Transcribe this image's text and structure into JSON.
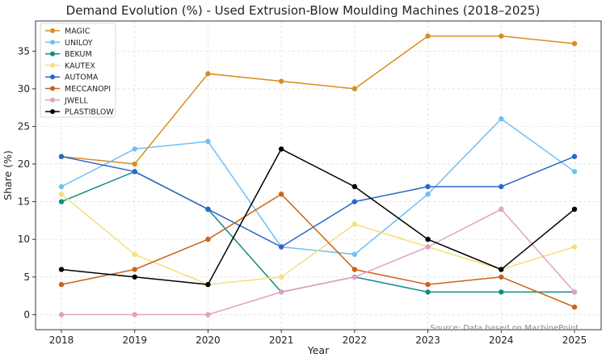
{
  "chart_data": {
    "type": "line",
    "title": "Demand Evolution (%) - Used Extrusion-Blow Moulding Machines (2018–2025)",
    "xlabel": "Year",
    "ylabel": "Share (%)",
    "x": [
      "2018",
      "2019",
      "2020",
      "2021",
      "2022",
      "2023",
      "2024",
      "2025"
    ],
    "ylim": [
      -2,
      39
    ],
    "yticks": [
      "0",
      "5",
      "10",
      "15",
      "20",
      "25",
      "30",
      "35"
    ],
    "grid": true,
    "legend_position": "top-left",
    "annotation": "Source: Data based on MachinePoint",
    "series": [
      {
        "name": "MAGIC",
        "color": "#d98c1f",
        "values": [
          21,
          20,
          32,
          31,
          30,
          37,
          37,
          36
        ]
      },
      {
        "name": "UNILOY",
        "color": "#6ec1f2",
        "values": [
          17,
          22,
          23,
          9,
          8,
          16,
          26,
          19
        ]
      },
      {
        "name": "BEKUM",
        "color": "#118c86",
        "values": [
          15,
          19,
          14,
          3,
          5,
          3,
          3,
          3
        ]
      },
      {
        "name": "KAUTEX",
        "color": "#f5e07a",
        "values": [
          16,
          8,
          4,
          5,
          12,
          9,
          6,
          9
        ]
      },
      {
        "name": "AUTOMA",
        "color": "#2a67c8",
        "values": [
          21,
          19,
          14,
          9,
          15,
          17,
          17,
          21
        ]
      },
      {
        "name": "MECCANOPI",
        "color": "#c8641a",
        "values": [
          4,
          6,
          10,
          16,
          6,
          4,
          5,
          1
        ]
      },
      {
        "name": "JWELL",
        "color": "#e3a0c4",
        "values": [
          0,
          0,
          0,
          3,
          5,
          9,
          14,
          3
        ]
      },
      {
        "name": "PLASTIBLOW",
        "color": "#000000",
        "values": [
          6,
          5,
          4,
          22,
          17,
          10,
          6,
          14
        ]
      }
    ]
  }
}
